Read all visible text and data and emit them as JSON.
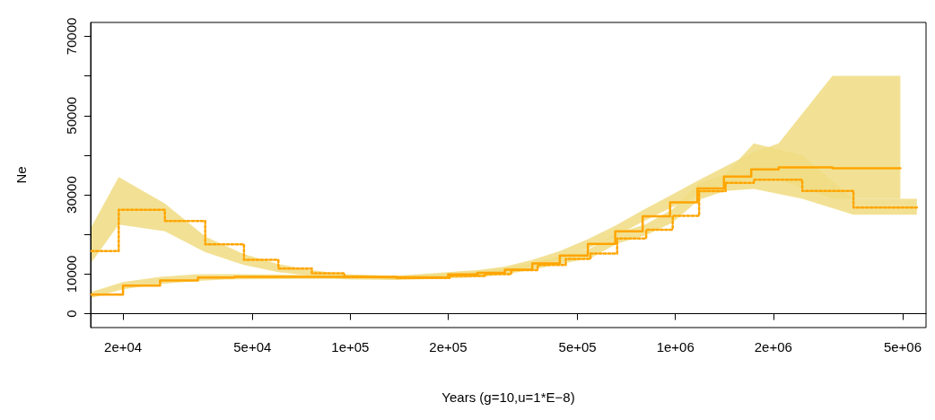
{
  "chart_data": {
    "type": "step",
    "xlabel": "Years (g=10,u=1*E−8)",
    "ylabel": "Ne",
    "log": "x",
    "xlim": [
      15900,
      5900000
    ],
    "ylim": [
      -3500,
      73500
    ],
    "xticks": [
      {
        "value": 20000,
        "label": "2e+04"
      },
      {
        "value": 50000,
        "label": "5e+04"
      },
      {
        "value": 100000,
        "label": "1e+05"
      },
      {
        "value": 200000,
        "label": "2e+05"
      },
      {
        "value": 500000,
        "label": "5e+05"
      },
      {
        "value": 1000000,
        "label": "1e+06"
      },
      {
        "value": 2000000,
        "label": "2e+06"
      },
      {
        "value": 5000000,
        "label": "5e+06"
      }
    ],
    "yticks": [
      0,
      10000,
      {
        "value": 20000,
        "label": null
      },
      30000,
      {
        "value": 40000,
        "label": null
      },
      50000,
      {
        "value": 60000,
        "label": null
      },
      70000
    ],
    "series": [
      {
        "color": "#ffa500",
        "line_style": "dotted",
        "x": [
          16000,
          19400,
          26900,
          35800,
          47100,
          60100,
          76200,
          96000,
          139000,
          202000,
          259000,
          313000,
          377000,
          460000,
          548000,
          662000,
          813000,
          981000,
          1183000,
          1427000,
          1742000,
          2456000,
          3529000,
          5530000
        ],
        "values": [
          15800,
          26200,
          23400,
          17500,
          13600,
          11400,
          10200,
          9300,
          9000,
          9500,
          10000,
          11000,
          12300,
          13800,
          15200,
          19000,
          21200,
          24700,
          30900,
          33000,
          33800,
          31000,
          26800,
          26800
        ],
        "lower": [
          13000,
          22500,
          20800,
          15500,
          12300,
          10500,
          9500,
          8700,
          8500,
          8900,
          9300,
          10200,
          11400,
          12800,
          14000,
          17700,
          19800,
          23000,
          28800,
          31000,
          31500,
          29000,
          25000,
          25000
        ],
        "upper": [
          22000,
          34500,
          27800,
          19500,
          15000,
          12500,
          11000,
          10000,
          9500,
          10100,
          10700,
          11800,
          13200,
          14800,
          16500,
          20300,
          22600,
          26400,
          33000,
          35200,
          43000,
          40000,
          29000,
          29000
        ]
      },
      {
        "color": "#ffa500",
        "line_style": "solid",
        "x": [
          16000,
          20000,
          26000,
          34000,
          44000,
          70000,
          108000,
          139000,
          200000,
          246000,
          299000,
          363000,
          441000,
          538000,
          653000,
          793000,
          963000,
          1169000,
          1410000,
          1711000,
          2077000,
          3040000,
          4920000
        ],
        "values": [
          4800,
          7100,
          8400,
          9100,
          9300,
          9300,
          9200,
          9100,
          9900,
          10300,
          11100,
          12700,
          14700,
          17600,
          20800,
          24600,
          28100,
          31600,
          34600,
          36400,
          36900,
          36700,
          36700
        ],
        "lower": [
          4000,
          6200,
          7500,
          8300,
          8700,
          8800,
          8800,
          8700,
          9300,
          9700,
          10400,
          11900,
          13700,
          16500,
          19500,
          23200,
          26600,
          29800,
          32500,
          33800,
          33800,
          29000,
          29000
        ],
        "upper": [
          5500,
          8000,
          9300,
          10000,
          10000,
          9800,
          9700,
          9600,
          10500,
          11000,
          11900,
          13600,
          15800,
          18800,
          22200,
          26100,
          29800,
          33500,
          37000,
          40500,
          43000,
          60000,
          60000
        ]
      }
    ]
  }
}
